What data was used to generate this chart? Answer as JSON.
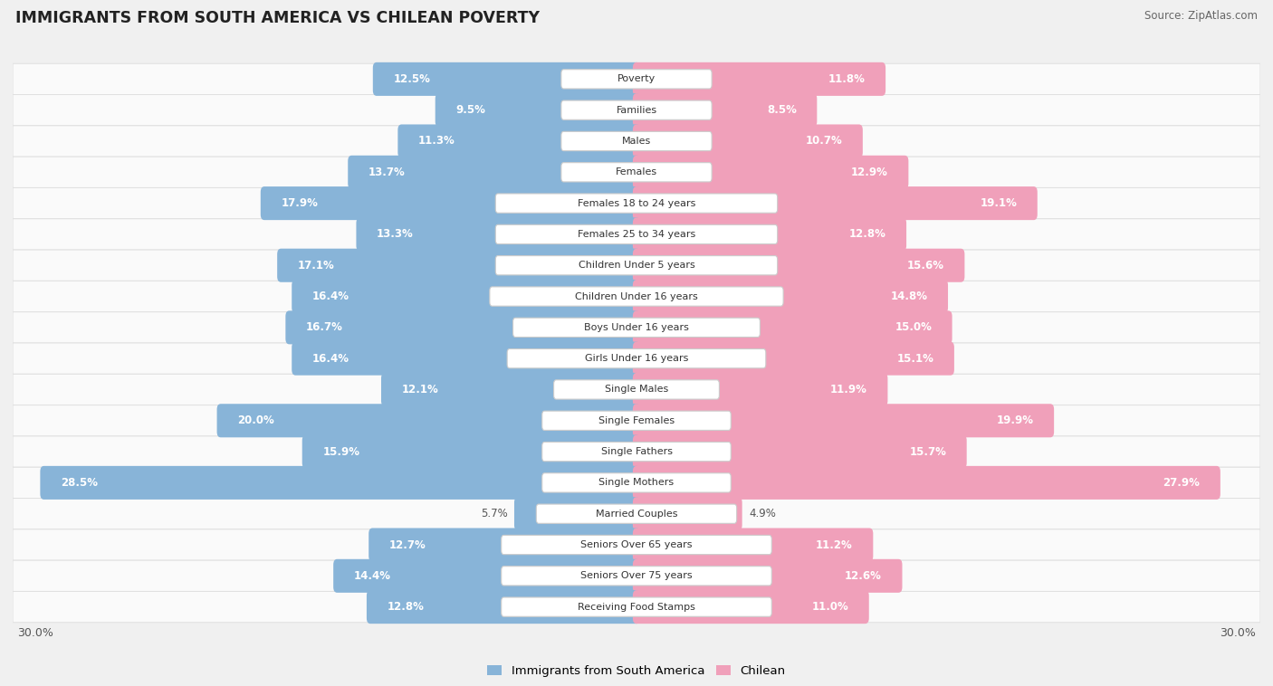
{
  "title": "IMMIGRANTS FROM SOUTH AMERICA VS CHILEAN POVERTY",
  "source": "Source: ZipAtlas.com",
  "categories": [
    "Poverty",
    "Families",
    "Males",
    "Females",
    "Females 18 to 24 years",
    "Females 25 to 34 years",
    "Children Under 5 years",
    "Children Under 16 years",
    "Boys Under 16 years",
    "Girls Under 16 years",
    "Single Males",
    "Single Females",
    "Single Fathers",
    "Single Mothers",
    "Married Couples",
    "Seniors Over 65 years",
    "Seniors Over 75 years",
    "Receiving Food Stamps"
  ],
  "immigrants": [
    12.5,
    9.5,
    11.3,
    13.7,
    17.9,
    13.3,
    17.1,
    16.4,
    16.7,
    16.4,
    12.1,
    20.0,
    15.9,
    28.5,
    5.7,
    12.7,
    14.4,
    12.8
  ],
  "chilean": [
    11.8,
    8.5,
    10.7,
    12.9,
    19.1,
    12.8,
    15.6,
    14.8,
    15.0,
    15.1,
    11.9,
    19.9,
    15.7,
    27.9,
    4.9,
    11.2,
    12.6,
    11.0
  ],
  "max_val": 30.0,
  "blue_color": "#88b4d8",
  "pink_color": "#f0a0ba",
  "bg_color": "#f0f0f0",
  "row_bg": "#fafafa",
  "row_border": "#e0e0e0",
  "legend_blue": "#88b4d8",
  "legend_pink": "#f0a0ba",
  "label_inside_threshold_imm": 7.0,
  "label_inside_threshold_chil": 7.0
}
